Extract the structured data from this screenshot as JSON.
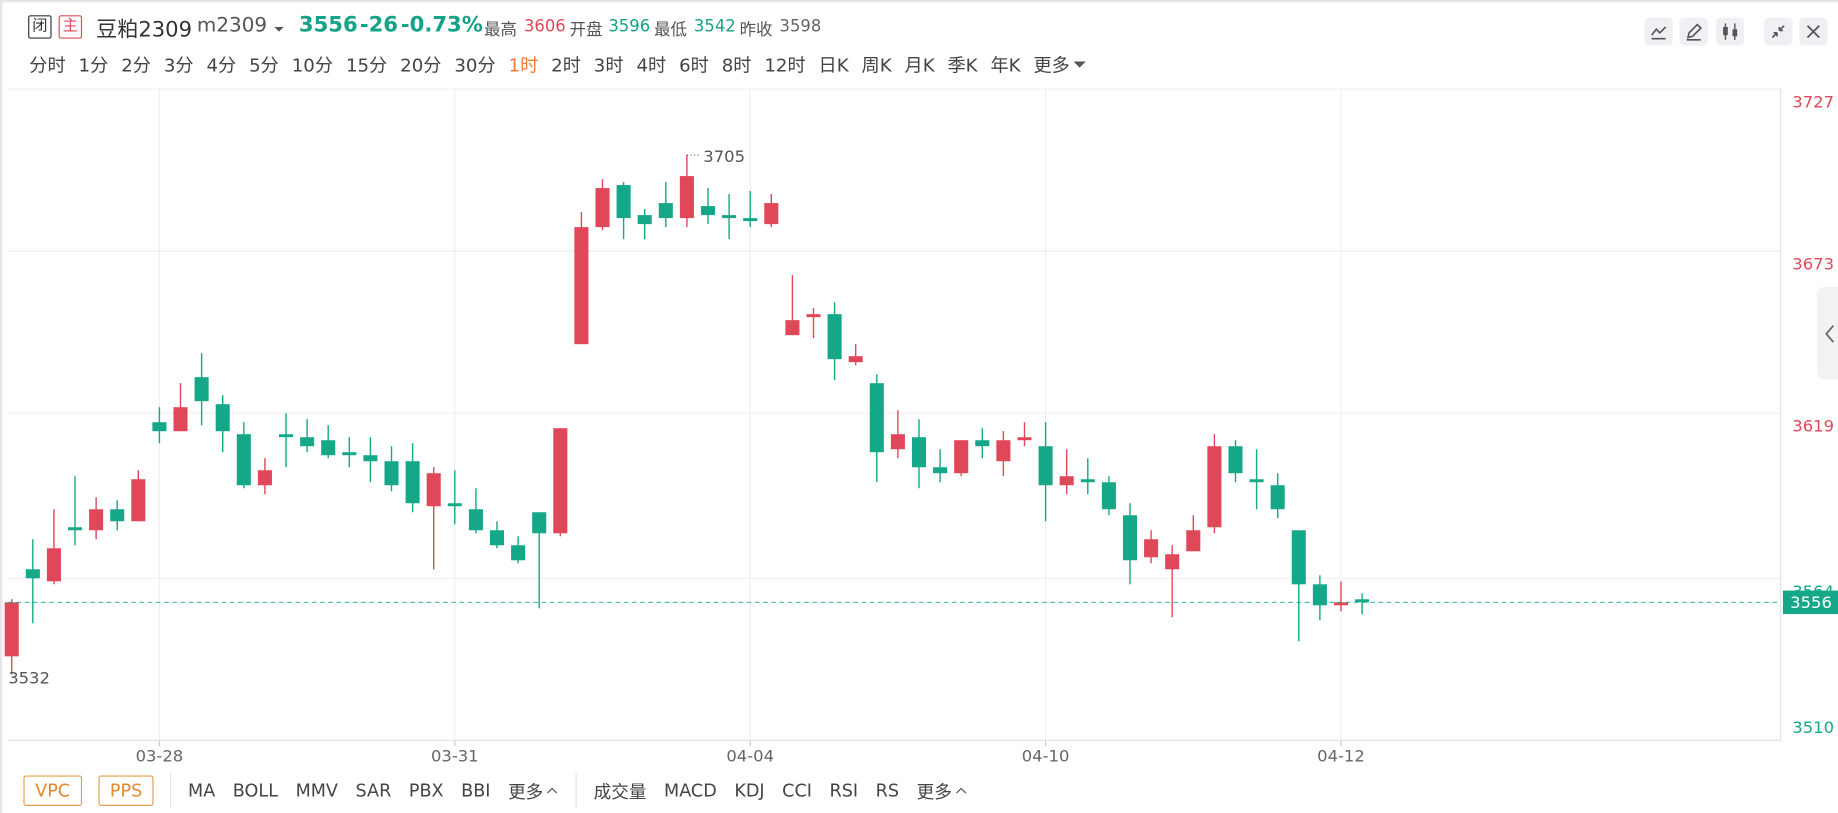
{
  "header": {
    "close_icon": "闭",
    "main_icon": "主",
    "name": "豆粕2309",
    "code": "m2309",
    "price": 3556,
    "change": -26,
    "change_pct": "-0.73%",
    "high_label": "最高",
    "high": 3606,
    "open_label": "开盘",
    "open": 3596,
    "low_label": "最低",
    "low": 3542,
    "prev_close_label": "昨收",
    "prev_close": 3598
  },
  "periods": [
    "分时",
    "1分",
    "2分",
    "3分",
    "4分",
    "5分",
    "10分",
    "15分",
    "20分",
    "30分",
    "1时",
    "2时",
    "3时",
    "4时",
    "6时",
    "8时",
    "12时",
    "日K",
    "周K",
    "月K",
    "季K",
    "年K",
    "更多"
  ],
  "active_period": "1时",
  "chart_data": {
    "type": "candlestick",
    "categories": [
      null,
      null,
      null,
      null,
      null,
      null,
      null,
      "03-28",
      null,
      null,
      null,
      null,
      null,
      null,
      null,
      null,
      null,
      null,
      null,
      null,
      null,
      "03-31",
      null,
      null,
      null,
      null,
      null,
      null,
      null,
      null,
      null,
      null,
      null,
      null,
      null,
      "04-04",
      null,
      null,
      null,
      null,
      null,
      null,
      null,
      null,
      null,
      null,
      null,
      null,
      null,
      "04-10",
      null,
      null,
      null,
      null,
      null,
      null,
      null,
      null,
      null,
      null,
      null,
      null,
      null,
      "04-12",
      null
    ],
    "open": [
      3538,
      3567,
      3563,
      3581,
      3580,
      3587,
      3583,
      3616,
      3613,
      3631,
      3622,
      3612,
      3595,
      3612,
      3611,
      3610,
      3606,
      3605,
      3603,
      3603,
      3588,
      3589,
      3587,
      3580,
      3575,
      3586,
      3579,
      3642,
      3681,
      3695,
      3685,
      3689,
      3684,
      3688,
      3685,
      3684,
      3682,
      3645,
      3651,
      3652,
      3636,
      3629,
      3607,
      3611,
      3601,
      3599,
      3610,
      3603,
      3610,
      3608,
      3595,
      3597,
      3596,
      3585,
      3571,
      3567,
      3573,
      3581,
      3608,
      3597,
      3595,
      3580,
      3562,
      3555,
      3557
    ],
    "high": [
      3557,
      3577,
      3587,
      3598,
      3591,
      3590,
      3600,
      3621,
      3629,
      3639,
      3625,
      3616,
      3604,
      3619,
      3617,
      3615,
      3611,
      3611,
      3608,
      3609,
      3601,
      3600,
      3594,
      3583,
      3578,
      3586,
      3614,
      3686,
      3697,
      3696,
      3687,
      3696,
      3705,
      3694,
      3692,
      3693,
      3692,
      3665,
      3654,
      3656,
      3642,
      3632,
      3620,
      3617,
      3607,
      3610,
      3614,
      3613,
      3616,
      3616,
      3607,
      3604,
      3598,
      3589,
      3580,
      3575,
      3585,
      3612,
      3610,
      3607,
      3599,
      3580,
      3565,
      3563,
      3559
    ],
    "low": [
      3532,
      3549,
      3562,
      3575,
      3577,
      3580,
      3583,
      3609,
      3613,
      3615,
      3606,
      3594,
      3592,
      3601,
      3606,
      3604,
      3601,
      3596,
      3593,
      3586,
      3567,
      3582,
      3579,
      3574,
      3569,
      3554,
      3578,
      3642,
      3680,
      3677,
      3677,
      3681,
      3681,
      3682,
      3677,
      3681,
      3681,
      3645,
      3644,
      3630,
      3635,
      3596,
      3604,
      3594,
      3596,
      3598,
      3604,
      3598,
      3608,
      3583,
      3592,
      3592,
      3585,
      3562,
      3569,
      3551,
      3573,
      3579,
      3596,
      3587,
      3584,
      3543,
      3550,
      3553,
      3552
    ],
    "close": [
      3556,
      3564,
      3574,
      3580,
      3587,
      3583,
      3597,
      3613,
      3621,
      3623,
      3613,
      3595,
      3600,
      3611,
      3608,
      3605,
      3605,
      3603,
      3595,
      3589,
      3599,
      3588,
      3580,
      3575,
      3570,
      3579,
      3614,
      3681,
      3694,
      3684,
      3682,
      3684,
      3698,
      3685,
      3684,
      3683,
      3689,
      3650,
      3652,
      3637,
      3638,
      3606,
      3612,
      3601,
      3599,
      3610,
      3608,
      3610,
      3611,
      3595,
      3598,
      3596,
      3587,
      3570,
      3577,
      3572,
      3580,
      3608,
      3599,
      3596,
      3587,
      3562,
      3555,
      3556,
      3556
    ],
    "ylim": [
      3510,
      3727
    ],
    "yticks": [
      3727,
      3673,
      3619,
      3564,
      3510
    ],
    "up_color": "#e0485a",
    "down_color": "#14a889",
    "grid": true,
    "max_label": 3705,
    "min_label": 3532
  },
  "indicators": {
    "main": [
      "VPC",
      "PPS"
    ],
    "overlay": [
      "MA",
      "BOLL",
      "MMV",
      "SAR",
      "PBX",
      "BBI",
      "更多"
    ],
    "sub": [
      "成交量",
      "MACD",
      "KDJ",
      "CCI",
      "RSI",
      "RS",
      "更多"
    ]
  }
}
